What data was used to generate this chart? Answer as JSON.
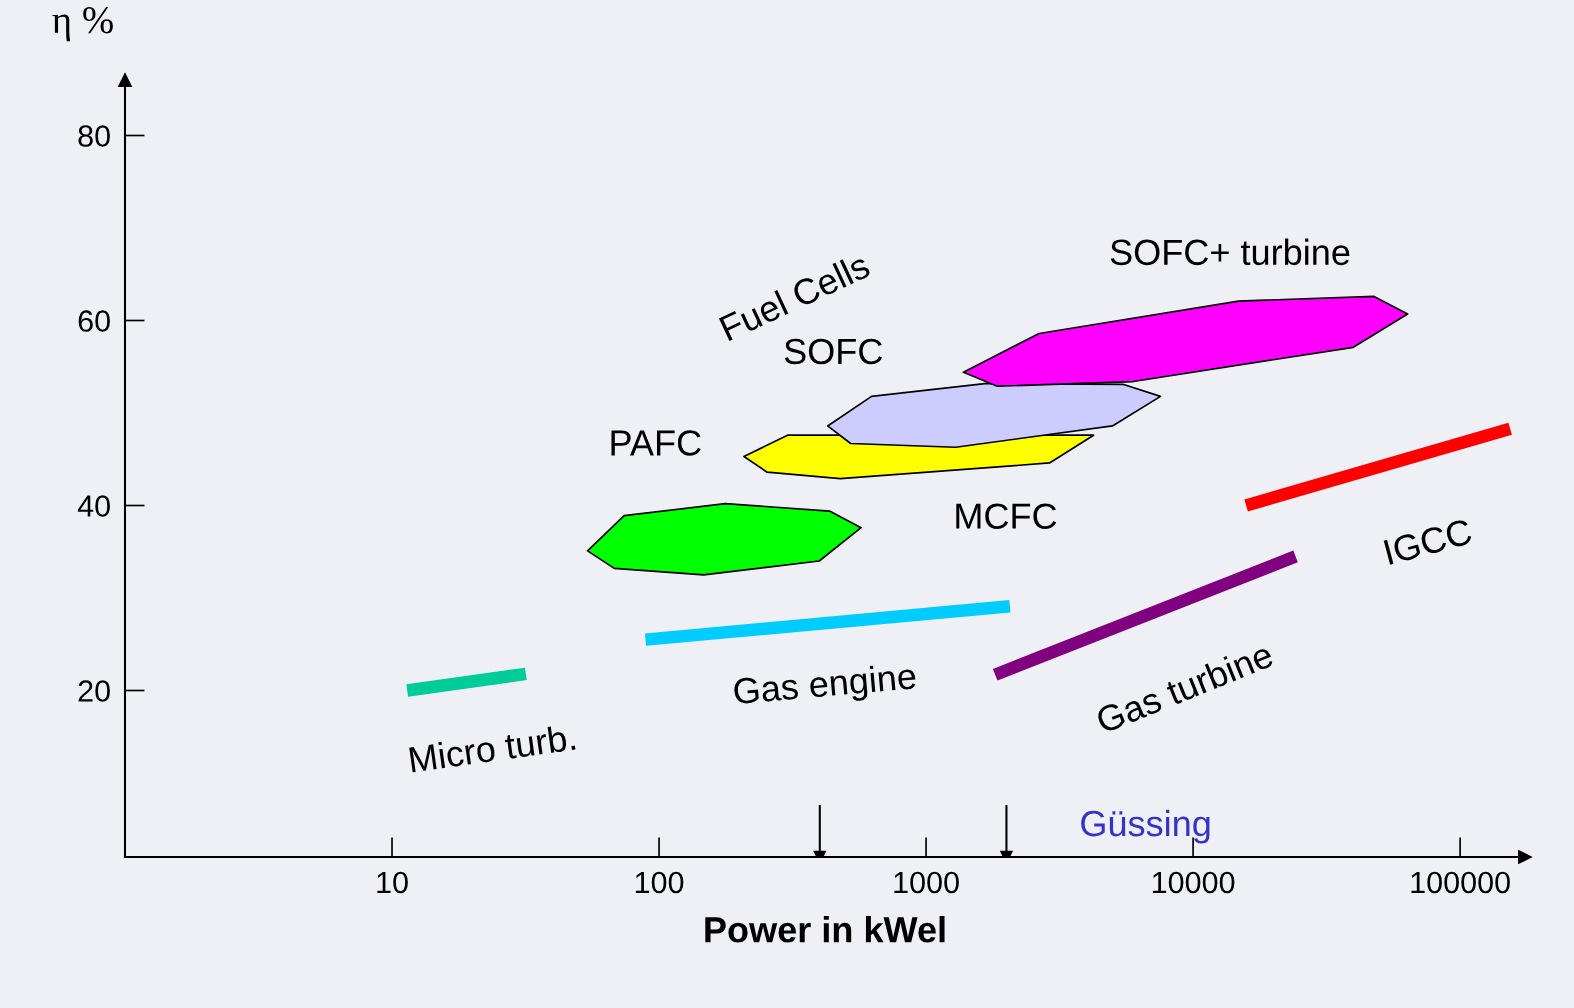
{
  "chart_data": {
    "type": "line",
    "xlabel": "Power in kWel",
    "ylabel": "η %",
    "log": "x",
    "xlim": [
      1,
      175000
    ],
    "ylim": [
      2,
      86
    ],
    "xticks": [
      10,
      100,
      1000,
      10000,
      100000
    ],
    "yticks": [
      20,
      40,
      60,
      80
    ],
    "grid": false,
    "marker": "none",
    "line_style": "solid",
    "series": [
      {
        "name": "Micro turb.",
        "color": "#00cc99",
        "x": [
          11.4,
          31.7
        ],
        "values": [
          20,
          21.8
        ]
      },
      {
        "name": "Gas engine",
        "color": "#00ccff",
        "x": [
          89,
          2060
        ],
        "values": [
          25.5,
          29.1
        ]
      },
      {
        "name": "Gas turbine",
        "color": "#800080",
        "x": [
          1815,
          24200
        ],
        "values": [
          21.7,
          34.5
        ]
      },
      {
        "name": "IGCC",
        "color": "#ff0000",
        "x": [
          15800,
          154000
        ],
        "values": [
          40,
          48.3
        ]
      },
      {
        "name": "PAFC",
        "type": "area",
        "color": "#00ff00",
        "x": [
          54,
          74,
          177,
          435,
          571,
          398,
          147,
          68
        ],
        "values": [
          35.1,
          38.9,
          40.2,
          39.4,
          37.6,
          34.0,
          32.5,
          33.2
        ]
      },
      {
        "name": "MCFC",
        "type": "area",
        "color": "#ffff00",
        "x": [
          208,
          303,
          981,
          3180,
          4240,
          2900,
          477,
          254
        ],
        "values": [
          45.3,
          47.6,
          null,
          null,
          47.6,
          44.6,
          42.9,
          43.6
        ]
      },
      {
        "name": "SOFC",
        "type": "area",
        "color": "#ccccff",
        "x": [
          428,
          625,
          1690,
          5460,
          7550,
          4990,
          1290,
          522
        ],
        "values": [
          48.6,
          51.8,
          53.2,
          53.1,
          51.8,
          48.6,
          46.3,
          46.7
        ]
      },
      {
        "name": "SOFC+ turbine",
        "type": "area",
        "color": "#ff00ff",
        "x": [
          1380,
          2650,
          14800,
          47600,
          63600,
          39800,
          5970,
          1850
        ],
        "values": [
          54.4,
          58.6,
          62.1,
          62.6,
          60.7,
          57.1,
          53.4,
          52.9
        ]
      },
      {
        "color": "#000000",
        "marker": "triangle",
        "x": [
          400,
          400
        ],
        "values": [
          7.5,
          2
        ]
      },
      {
        "color": "#000000",
        "marker": "triangle",
        "x": [
          2000,
          2000
        ],
        "values": [
          7.5,
          2
        ]
      }
    ],
    "annotations": [
      "Fuel Cells",
      "Güssing"
    ]
  }
}
